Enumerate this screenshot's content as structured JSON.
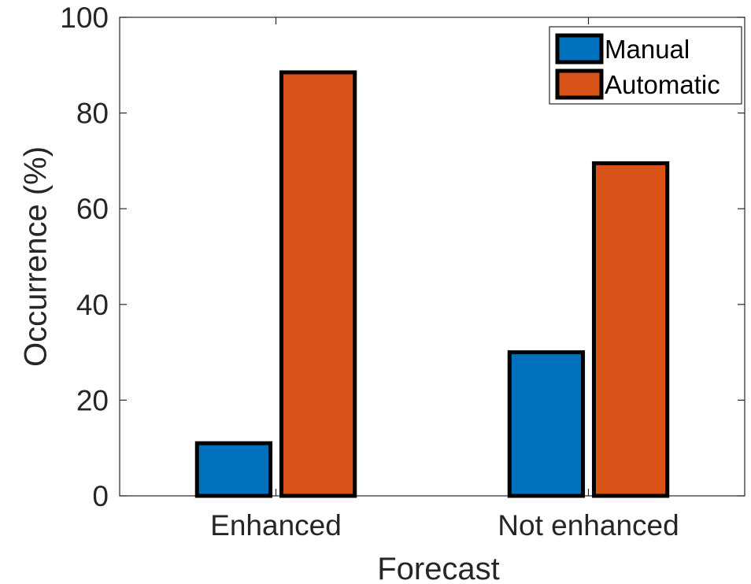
{
  "chart_data": {
    "type": "bar",
    "categories": [
      "Enhanced",
      "Not enhanced"
    ],
    "series": [
      {
        "name": "Manual",
        "values": [
          11,
          30
        ],
        "color": "#0072BD"
      },
      {
        "name": "Automatic",
        "values": [
          88.5,
          69.5
        ],
        "color": "#D95319"
      }
    ],
    "xlabel": "Forecast",
    "ylabel": "Occurrence (%)",
    "ylim": [
      0,
      100
    ],
    "yticks": [
      0,
      20,
      40,
      60,
      80,
      100
    ],
    "grid": false,
    "legend_position": "top-right"
  }
}
